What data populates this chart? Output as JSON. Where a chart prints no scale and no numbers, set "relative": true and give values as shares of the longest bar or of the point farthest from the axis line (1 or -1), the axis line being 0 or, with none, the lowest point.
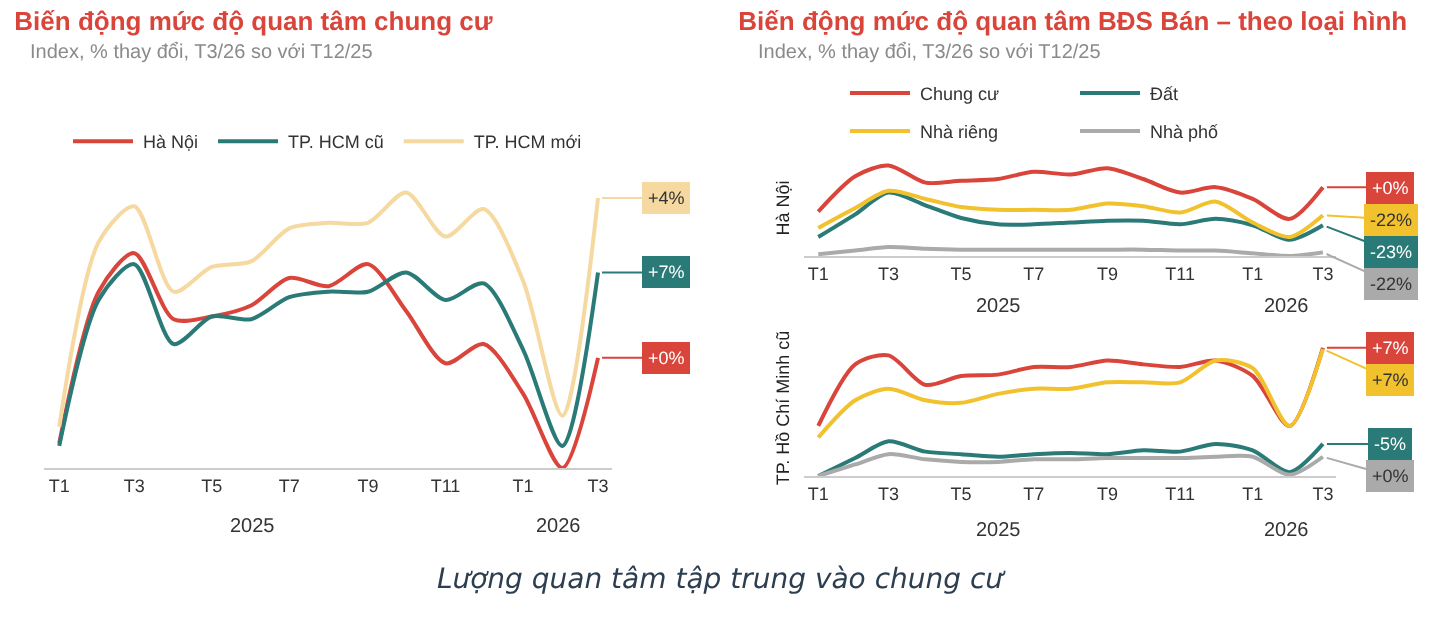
{
  "chart_data": [
    {
      "type": "line",
      "title": "Biến động mức độ quan tâm chung cư",
      "subtitle": "Index, % thay đổi, T3/26 so với T12/25",
      "relative": true,
      "legend": "top",
      "grid": false,
      "marker": "none",
      "line_style": "solid",
      "x": [
        "2025-01",
        "2025-02",
        "2025-03",
        "2025-04",
        "2025-05",
        "2025-06",
        "2025-07",
        "2025-08",
        "2025-09",
        "2025-10",
        "2025-11",
        "2025-12",
        "2026-01",
        "2026-02",
        "2026-03"
      ],
      "xlim": [
        "2024-12-20",
        "2026-03-12"
      ],
      "xticks": [
        {
          "value": "2025-01",
          "label": "T1"
        },
        {
          "value": "2025-03",
          "label": "T3"
        },
        {
          "value": "2025-05",
          "label": "T5"
        },
        {
          "value": "2025-07",
          "label": "T7"
        },
        {
          "value": "2025-09",
          "label": "T9"
        },
        {
          "value": "2025-11",
          "label": "T11"
        },
        {
          "value": "2026-01",
          "label": "T1"
        },
        {
          "value": "2026-03",
          "label": "T3"
        }
      ],
      "series": [
        {
          "name": "Hà Nội",
          "color": "#d9453b",
          "values": [
            0.09,
            0.64,
            0.78,
            0.54,
            0.55,
            0.59,
            0.69,
            0.66,
            0.74,
            0.57,
            0.38,
            0.45,
            0.27,
            0.0,
            0.4
          ]
        },
        {
          "name": "TP. HCM cũ",
          "color": "#2a7a78",
          "values": [
            0.08,
            0.61,
            0.74,
            0.45,
            0.55,
            0.54,
            0.62,
            0.64,
            0.64,
            0.71,
            0.61,
            0.67,
            0.43,
            0.08,
            0.71
          ]
        },
        {
          "name": "TP. HCM mới",
          "color": "#f5d9a0",
          "values": [
            0.15,
            0.82,
            0.95,
            0.64,
            0.73,
            0.75,
            0.87,
            0.89,
            0.89,
            1.0,
            0.84,
            0.94,
            0.68,
            0.19,
            0.98
          ]
        }
      ],
      "annotations": [
        "2025",
        "2026",
        "Lượng quan tâm tập trung vào chung cư",
        {
          "text": "+0%",
          "x": "2026-03",
          "y": 0.4
        },
        {
          "text": "+7%",
          "x": "2026-03",
          "y": 0.71
        },
        {
          "text": "+4%",
          "x": "2026-03",
          "y": 0.98
        }
      ]
    },
    {
      "type": "line",
      "title": "Biến động mức độ quan tâm BĐS Bán – theo loại hình",
      "subtitle": "Index, % thay đổi, T3/26 so với T12/25",
      "ylabel": "Hà Nội",
      "relative": true,
      "legend": "top",
      "grid": false,
      "marker": "none",
      "line_style": "solid",
      "x": [
        "2025-01",
        "2025-02",
        "2025-03",
        "2025-04",
        "2025-05",
        "2025-06",
        "2025-07",
        "2025-08",
        "2025-09",
        "2025-10",
        "2025-11",
        "2025-12",
        "2026-01",
        "2026-02",
        "2026-03"
      ],
      "xlim": [
        "2024-12-20",
        "2026-03-12"
      ],
      "xticks": [
        {
          "value": "2025-01",
          "label": "T1"
        },
        {
          "value": "2025-03",
          "label": "T3"
        },
        {
          "value": "2025-05",
          "label": "T5"
        },
        {
          "value": "2025-07",
          "label": "T7"
        },
        {
          "value": "2025-09",
          "label": "T9"
        },
        {
          "value": "2025-11",
          "label": "T11"
        },
        {
          "value": "2026-01",
          "label": "T1"
        },
        {
          "value": "2026-03",
          "label": "T3"
        }
      ],
      "series": [
        {
          "name": "Chung cư",
          "color": "#d9453b",
          "values": [
            0.49,
            0.88,
            1.0,
            0.81,
            0.83,
            0.85,
            0.93,
            0.9,
            0.97,
            0.85,
            0.7,
            0.76,
            0.63,
            0.41,
            0.76
          ]
        },
        {
          "name": "Đất",
          "color": "#2a7a78",
          "values": [
            0.21,
            0.46,
            0.7,
            0.56,
            0.42,
            0.35,
            0.35,
            0.37,
            0.39,
            0.39,
            0.35,
            0.41,
            0.34,
            0.18,
            0.34
          ]
        },
        {
          "name": "Nhà riêng",
          "color": "#f2c12e",
          "values": [
            0.31,
            0.53,
            0.72,
            0.63,
            0.54,
            0.51,
            0.51,
            0.51,
            0.58,
            0.55,
            0.48,
            0.6,
            0.37,
            0.21,
            0.45
          ]
        },
        {
          "name": "Nhà phố",
          "color": "#aaaaaa",
          "values": [
            0.02,
            0.06,
            0.1,
            0.08,
            0.07,
            0.07,
            0.07,
            0.07,
            0.07,
            0.07,
            0.06,
            0.06,
            0.03,
            0.0,
            0.04
          ]
        }
      ],
      "annotations": [
        "2025",
        "2026",
        {
          "text": "+0%",
          "x": "2026-03",
          "y": 0.76
        },
        {
          "text": "-23%",
          "x": "2026-03",
          "y": 0.34
        },
        {
          "text": "-22%",
          "x": "2026-03",
          "y": 0.45
        },
        {
          "text": "-22%",
          "x": "2026-03",
          "y": 0.04
        }
      ]
    },
    {
      "type": "line",
      "ylabel": "TP. Hồ Chí Minh cũ",
      "relative": true,
      "grid": false,
      "marker": "none",
      "line_style": "solid",
      "x": [
        "2025-01",
        "2025-02",
        "2025-03",
        "2025-04",
        "2025-05",
        "2025-06",
        "2025-07",
        "2025-08",
        "2025-09",
        "2025-10",
        "2025-11",
        "2025-12",
        "2026-01",
        "2026-02",
        "2026-03"
      ],
      "xlim": [
        "2024-12-20",
        "2026-03-12"
      ],
      "xticks": [
        {
          "value": "2025-01",
          "label": "T1"
        },
        {
          "value": "2025-03",
          "label": "T3"
        },
        {
          "value": "2025-05",
          "label": "T5"
        },
        {
          "value": "2025-07",
          "label": "T7"
        },
        {
          "value": "2025-09",
          "label": "T9"
        },
        {
          "value": "2025-11",
          "label": "T11"
        },
        {
          "value": "2026-01",
          "label": "T1"
        },
        {
          "value": "2026-03",
          "label": "T3"
        }
      ],
      "series": [
        {
          "color": "#d9453b",
          "values": [
            0.39,
            0.87,
            0.94,
            0.71,
            0.78,
            0.79,
            0.85,
            0.85,
            0.9,
            0.87,
            0.85,
            0.9,
            0.78,
            0.39,
            1.0
          ]
        },
        {
          "color": "#2a7a78",
          "values": [
            0.0,
            0.14,
            0.27,
            0.19,
            0.17,
            0.15,
            0.17,
            0.18,
            0.17,
            0.2,
            0.19,
            0.25,
            0.2,
            0.03,
            0.25
          ]
        },
        {
          "color": "#f2c12e",
          "values": [
            0.3,
            0.59,
            0.68,
            0.59,
            0.57,
            0.64,
            0.68,
            0.68,
            0.73,
            0.73,
            0.73,
            0.9,
            0.84,
            0.39,
            0.99
          ]
        },
        {
          "color": "#aaaaaa",
          "values": [
            0.0,
            0.09,
            0.17,
            0.13,
            0.11,
            0.11,
            0.13,
            0.13,
            0.14,
            0.14,
            0.14,
            0.15,
            0.15,
            0.01,
            0.15
          ]
        }
      ],
      "annotations": [
        "2025",
        "2026",
        {
          "text": "+7%",
          "x": "2026-03",
          "y": 1.0
        },
        {
          "text": "-5%",
          "x": "2026-03",
          "y": 0.25
        },
        {
          "text": "+7%",
          "x": "2026-03",
          "y": 0.99
        },
        {
          "text": "+0%",
          "x": "2026-03",
          "y": 0.15
        }
      ]
    }
  ]
}
